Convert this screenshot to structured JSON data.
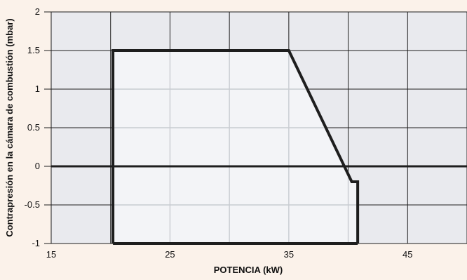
{
  "chart_data": {
    "type": "area",
    "xlabel": "POTENCIA (kW)",
    "ylabel": "Contrapresión en la cámara de combustión (mbar)",
    "xlim": [
      15,
      50
    ],
    "ylim": [
      -1,
      2
    ],
    "x_ticks": [
      15,
      25,
      35,
      45
    ],
    "x_tick_labels": [
      "15",
      "25",
      "35",
      "45"
    ],
    "y_ticks": [
      2,
      1.5,
      1,
      0.5,
      0,
      -0.5,
      -1
    ],
    "y_tick_labels": [
      "2",
      "1.5",
      "1",
      "0.5",
      "0",
      "-0.5",
      "-1"
    ],
    "x_gridlines": [
      15,
      20,
      25,
      30,
      35,
      40,
      45,
      50
    ],
    "y_gridlines": [
      2,
      1.5,
      1,
      0.5,
      0,
      -0.5,
      -1
    ],
    "grid": true,
    "series": [
      {
        "points": [
          [
            20.2,
            -1
          ],
          [
            20.2,
            1.5
          ],
          [
            35,
            1.5
          ],
          [
            40.3,
            -0.2
          ],
          [
            40.8,
            -0.2
          ],
          [
            40.8,
            -1
          ]
        ]
      }
    ],
    "reference_lines": [
      {
        "axis": "y",
        "value": 0
      }
    ],
    "colors": {
      "page_background": "#fbf2ea",
      "plot_background": "#e9eaee",
      "region_fill": "#f3f4f7",
      "gridline": "#b8bcc4",
      "inner_gridline": "#c8cbd1",
      "outline": "#1e1e1e"
    }
  }
}
